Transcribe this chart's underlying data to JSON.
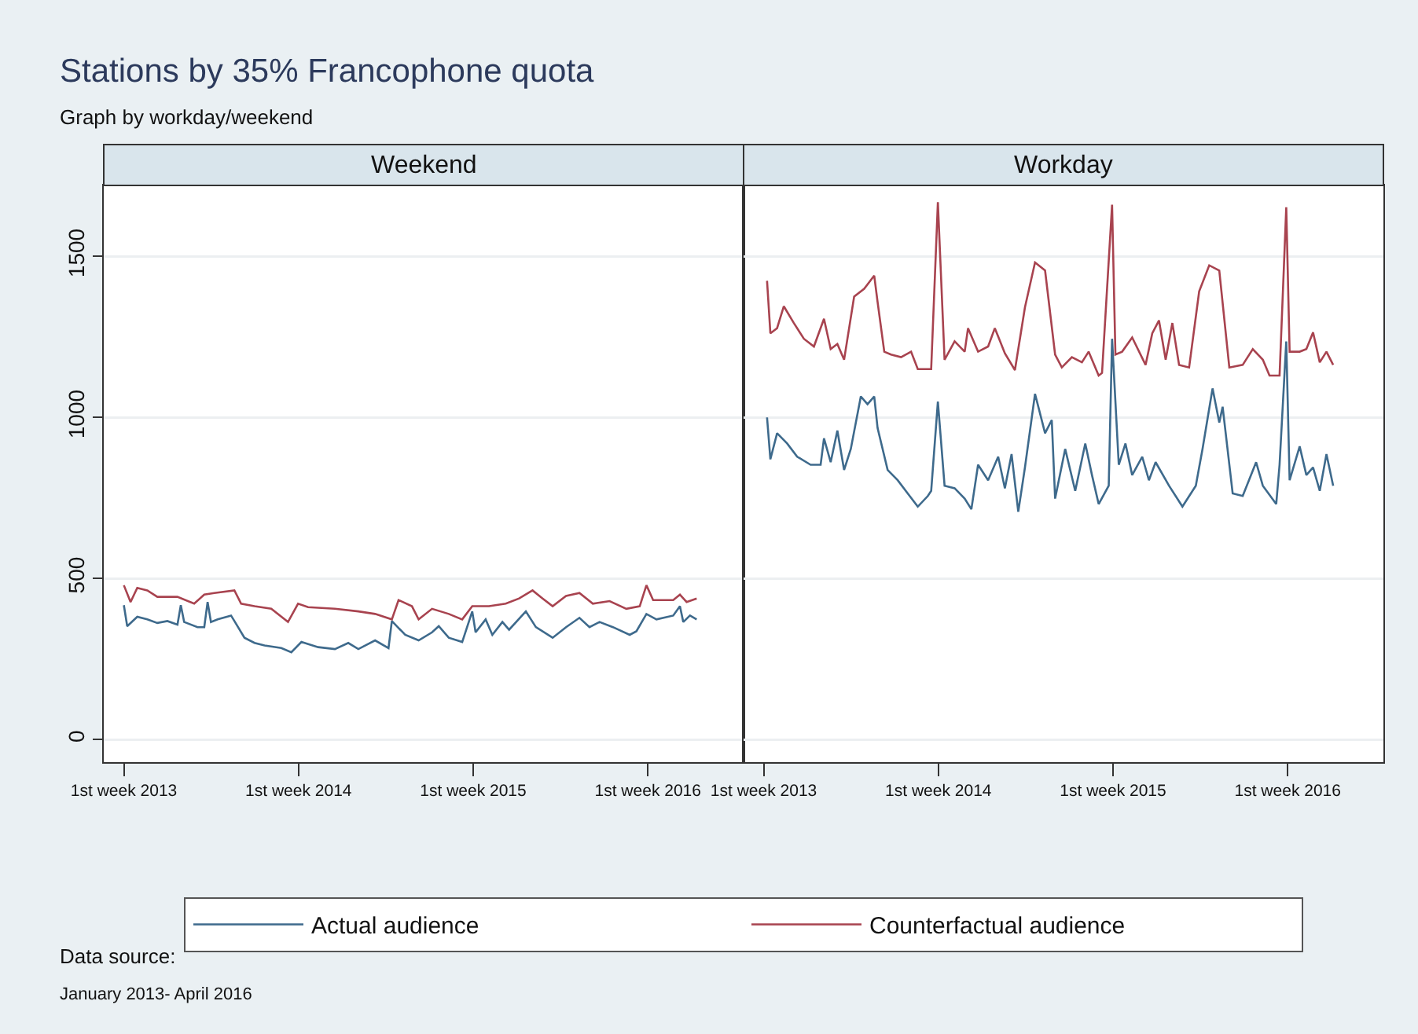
{
  "chart_data": [
    {
      "type": "line",
      "title": "Weekend",
      "annotations": [
        "Stations by 35% Francophone quota",
        "Graph by workday/weekend",
        "Data source:",
        "January 2013- April 2016"
      ],
      "xlim": [
        "2012-11-20",
        "2016-07-19"
      ],
      "xticks": [
        {
          "value": "2013-01-01",
          "label": "1st week 2013"
        },
        {
          "value": "2014-01-01",
          "label": "1st week 2014"
        },
        {
          "value": "2015-01-01",
          "label": "1st week 2015"
        },
        {
          "value": "2016-01-01",
          "label": "1st week 2016"
        }
      ],
      "ylim": [
        -70,
        1720
      ],
      "yticks": [
        0,
        500,
        1000,
        1500
      ],
      "grid": "y",
      "legend": "bottom",
      "series": [
        {
          "name": "Actual audience",
          "color": "#3e6a8c",
          "x": [
            "2013-01-01",
            "2013-01-08",
            "2013-01-29",
            "2013-02-19",
            "2013-03-12",
            "2013-04-02",
            "2013-04-23",
            "2013-04-30",
            "2013-05-07",
            "2013-06-04",
            "2013-06-18",
            "2013-06-25",
            "2013-07-02",
            "2013-07-16",
            "2013-08-13",
            "2013-08-20",
            "2013-09-10",
            "2013-10-01",
            "2013-10-22",
            "2013-11-26",
            "2013-12-17",
            "2014-01-07",
            "2014-02-11",
            "2014-03-18",
            "2014-04-15",
            "2014-05-06",
            "2014-06-10",
            "2014-07-08",
            "2014-07-15",
            "2014-08-12",
            "2014-09-09",
            "2014-10-07",
            "2014-10-21",
            "2014-11-11",
            "2014-12-09",
            "2014-12-30",
            "2015-01-06",
            "2015-01-27",
            "2015-02-10",
            "2015-03-03",
            "2015-03-17",
            "2015-04-21",
            "2015-05-12",
            "2015-06-16",
            "2015-07-14",
            "2015-08-11",
            "2015-09-01",
            "2015-09-22",
            "2015-10-20",
            "2015-11-24",
            "2015-12-08",
            "2015-12-29",
            "2016-01-19",
            "2016-02-23",
            "2016-03-08",
            "2016-03-15",
            "2016-03-29",
            "2016-04-12"
          ],
          "values": [
            417,
            352,
            381,
            373,
            362,
            368,
            357,
            417,
            365,
            349,
            349,
            427,
            365,
            373,
            385,
            368,
            316,
            300,
            292,
            284,
            271,
            303,
            287,
            281,
            300,
            281,
            308,
            284,
            368,
            325,
            308,
            333,
            352,
            316,
            303,
            398,
            333,
            373,
            325,
            365,
            341,
            398,
            349,
            316,
            349,
            378,
            349,
            365,
            349,
            325,
            336,
            390,
            373,
            385,
            414,
            365,
            385,
            373
          ]
        },
        {
          "name": "Counterfactual audience",
          "color": "#a8434f",
          "x": [
            "2013-01-01",
            "2013-01-15",
            "2013-01-29",
            "2013-02-19",
            "2013-03-12",
            "2013-04-23",
            "2013-05-28",
            "2013-06-18",
            "2013-07-09",
            "2013-08-20",
            "2013-09-03",
            "2013-10-01",
            "2013-11-05",
            "2013-12-10",
            "2013-12-31",
            "2014-01-21",
            "2014-03-18",
            "2014-05-06",
            "2014-06-10",
            "2014-07-15",
            "2014-07-29",
            "2014-08-26",
            "2014-09-09",
            "2014-10-07",
            "2014-11-11",
            "2014-12-09",
            "2014-12-30",
            "2015-02-03",
            "2015-03-10",
            "2015-04-07",
            "2015-05-05",
            "2015-05-26",
            "2015-06-16",
            "2015-07-14",
            "2015-08-11",
            "2015-09-08",
            "2015-10-13",
            "2015-11-17",
            "2015-12-15",
            "2015-12-29",
            "2016-01-12",
            "2016-02-23",
            "2016-03-08",
            "2016-03-22",
            "2016-04-12"
          ],
          "values": [
            479,
            427,
            471,
            463,
            443,
            443,
            422,
            450,
            455,
            463,
            422,
            414,
            406,
            365,
            422,
            411,
            406,
            398,
            390,
            373,
            433,
            414,
            373,
            406,
            390,
            373,
            414,
            414,
            422,
            438,
            463,
            438,
            414,
            446,
            455,
            422,
            430,
            406,
            414,
            479,
            433,
            433,
            450,
            427,
            438
          ]
        }
      ]
    },
    {
      "type": "line",
      "title": "Workday",
      "tick_labels": "x",
      "xlim": [
        "2012-11-20",
        "2016-07-19"
      ],
      "xticks": [
        {
          "value": "2013-01-01",
          "label": "1st week 2013"
        },
        {
          "value": "2014-01-01",
          "label": "1st week 2014"
        },
        {
          "value": "2015-01-01",
          "label": "1st week 2015"
        },
        {
          "value": "2016-01-01",
          "label": "1st week 2016"
        }
      ],
      "ylim": [
        -70,
        1720
      ],
      "yticks": [
        0,
        500,
        1000,
        1500
      ],
      "grid": "y",
      "legend": false,
      "series": [
        {
          "color": "#3e6a8c",
          "x": [
            "2013-01-08",
            "2013-01-15",
            "2013-01-29",
            "2013-02-19",
            "2013-03-12",
            "2013-04-09",
            "2013-04-30",
            "2013-05-07",
            "2013-05-21",
            "2013-06-04",
            "2013-06-18",
            "2013-07-02",
            "2013-07-23",
            "2013-08-06",
            "2013-08-20",
            "2013-08-27",
            "2013-09-17",
            "2013-10-08",
            "2013-10-29",
            "2013-11-19",
            "2013-12-10",
            "2013-12-17",
            "2013-12-31",
            "2014-01-14",
            "2014-02-04",
            "2014-02-25",
            "2014-03-11",
            "2014-03-25",
            "2014-04-15",
            "2014-05-06",
            "2014-05-20",
            "2014-06-03",
            "2014-06-17",
            "2014-07-01",
            "2014-07-22",
            "2014-08-12",
            "2014-08-26",
            "2014-09-02",
            "2014-09-23",
            "2014-10-14",
            "2014-11-04",
            "2014-11-18",
            "2014-12-02",
            "2014-12-23",
            "2014-12-30",
            "2015-01-13",
            "2015-01-27",
            "2015-02-10",
            "2015-03-03",
            "2015-03-17",
            "2015-03-31",
            "2015-04-28",
            "2015-05-26",
            "2015-06-23",
            "2015-07-07",
            "2015-07-28",
            "2015-08-11",
            "2015-08-18",
            "2015-09-08",
            "2015-09-29",
            "2015-10-27",
            "2015-11-10",
            "2015-12-08",
            "2015-12-15",
            "2015-12-29",
            "2016-01-05",
            "2016-01-26",
            "2016-02-09",
            "2016-02-23",
            "2016-03-08",
            "2016-03-22",
            "2016-04-05"
          ],
          "values": [
            1000,
            870,
            951,
            919,
            878,
            853,
            853,
            935,
            861,
            959,
            837,
            902,
            1065,
            1041,
            1065,
            967,
            837,
            805,
            764,
            723,
            756,
            772,
            1049,
            788,
            780,
            748,
            715,
            853,
            805,
            878,
            780,
            886,
            707,
            845,
            1073,
            951,
            992,
            748,
            902,
            772,
            919,
            821,
            731,
            788,
            1244,
            853,
            919,
            821,
            878,
            805,
            861,
            788,
            723,
            788,
            902,
            1090,
            984,
            1033,
            764,
            756,
            861,
            788,
            731,
            853,
            1236,
            805,
            910,
            821,
            845,
            772,
            886,
            788
          ]
        },
        {
          "color": "#a8434f",
          "x": [
            "2013-01-08",
            "2013-01-15",
            "2013-01-29",
            "2013-02-12",
            "2013-03-05",
            "2013-03-26",
            "2013-04-16",
            "2013-05-07",
            "2013-05-21",
            "2013-06-04",
            "2013-06-18",
            "2013-07-09",
            "2013-07-30",
            "2013-08-20",
            "2013-08-27",
            "2013-09-10",
            "2013-09-24",
            "2013-10-15",
            "2013-11-05",
            "2013-11-19",
            "2013-12-17",
            "2013-12-31",
            "2014-01-14",
            "2014-02-04",
            "2014-02-25",
            "2014-03-04",
            "2014-03-25",
            "2014-04-15",
            "2014-04-29",
            "2014-05-20",
            "2014-06-10",
            "2014-07-01",
            "2014-07-22",
            "2014-08-12",
            "2014-09-02",
            "2014-09-16",
            "2014-10-07",
            "2014-10-28",
            "2014-11-11",
            "2014-12-02",
            "2014-12-09",
            "2014-12-30",
            "2015-01-06",
            "2015-01-20",
            "2015-02-10",
            "2015-03-10",
            "2015-03-24",
            "2015-04-07",
            "2015-04-21",
            "2015-05-05",
            "2015-05-19",
            "2015-06-09",
            "2015-06-30",
            "2015-07-21",
            "2015-08-11",
            "2015-09-01",
            "2015-09-29",
            "2015-10-20",
            "2015-11-10",
            "2015-11-24",
            "2015-12-15",
            "2015-12-29",
            "2016-01-05",
            "2016-01-26",
            "2016-02-09",
            "2016-02-23",
            "2016-03-08",
            "2016-03-22",
            "2016-04-05"
          ],
          "values": [
            1424,
            1261,
            1277,
            1345,
            1293,
            1244,
            1220,
            1306,
            1212,
            1228,
            1179,
            1375,
            1399,
            1440,
            1358,
            1204,
            1195,
            1187,
            1204,
            1150,
            1150,
            1668,
            1179,
            1236,
            1204,
            1277,
            1204,
            1220,
            1277,
            1199,
            1147,
            1342,
            1481,
            1456,
            1195,
            1155,
            1187,
            1171,
            1204,
            1130,
            1138,
            1660,
            1195,
            1204,
            1248,
            1163,
            1261,
            1301,
            1179,
            1293,
            1163,
            1155,
            1391,
            1472,
            1456,
            1155,
            1163,
            1212,
            1179,
            1130,
            1130,
            1652,
            1204,
            1204,
            1212,
            1264,
            1171,
            1204,
            1163
          ]
        }
      ]
    }
  ]
}
